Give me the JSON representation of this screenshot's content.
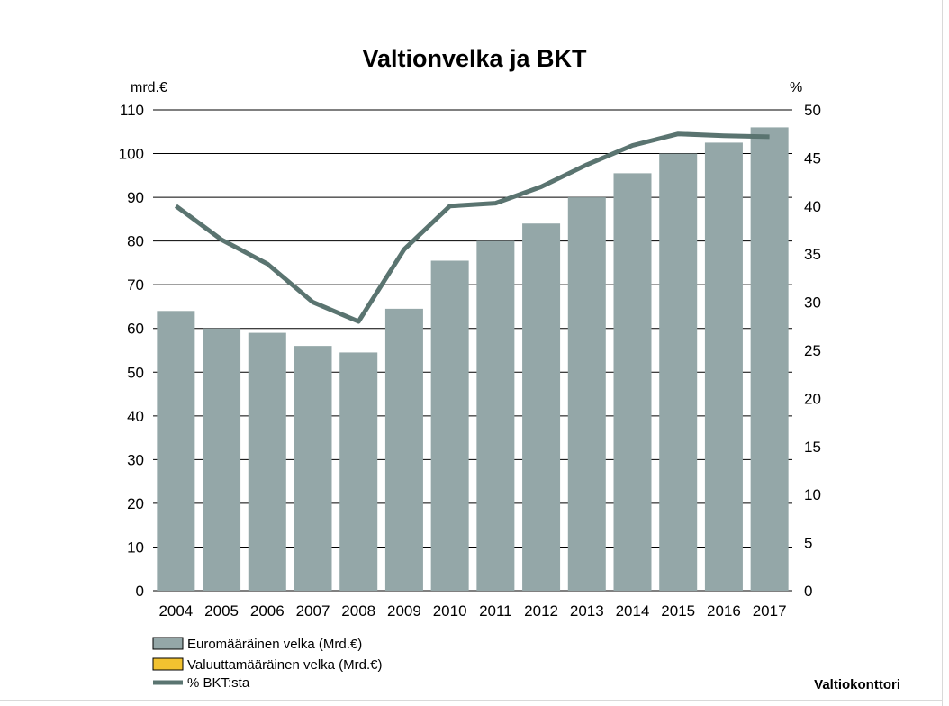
{
  "chart_data": {
    "type": "bar",
    "title": "Valtionvelka ja BKT",
    "y_left_unit": "mrd.€",
    "y_right_unit": "%",
    "categories": [
      "2004",
      "2005",
      "2006",
      "2007",
      "2008",
      "2009",
      "2010",
      "2011",
      "2012",
      "2013",
      "2014",
      "2015",
      "2016",
      "2017"
    ],
    "ylim_left": [
      0,
      110
    ],
    "ylim_right": [
      0,
      50
    ],
    "yticks_left": [
      0,
      10,
      20,
      30,
      40,
      50,
      60,
      70,
      80,
      90,
      100,
      110
    ],
    "yticks_right": [
      0,
      5,
      10,
      15,
      20,
      25,
      30,
      35,
      40,
      45,
      50
    ],
    "grid": true,
    "series": [
      {
        "name": "Euromääräinen velka (Mrd.€)",
        "kind": "bar",
        "axis": "left",
        "color": "#94a7a8",
        "values": [
          64,
          60,
          59,
          56,
          54.5,
          64.5,
          75.5,
          80,
          84,
          90,
          95.5,
          100,
          102.5,
          106
        ]
      },
      {
        "name": "Valuuttamääräinen velka (Mrd.€)",
        "kind": "bar",
        "axis": "left",
        "color": "#f2c230",
        "values": [
          0,
          0,
          0,
          0,
          0,
          0,
          0,
          0,
          0,
          0,
          0,
          0,
          0,
          0
        ]
      },
      {
        "name": "% BKT:sta",
        "kind": "line",
        "axis": "right",
        "color": "#5a7470",
        "values": [
          40,
          36.5,
          34,
          30,
          28,
          35.5,
          40,
          40.3,
          42,
          44.3,
          46.3,
          47.5,
          47.3,
          47.2
        ]
      }
    ],
    "source": "Valtiokonttori"
  }
}
